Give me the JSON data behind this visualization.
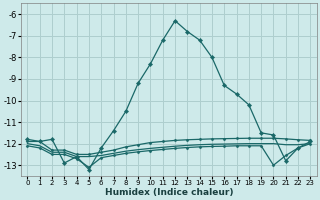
{
  "xlabel": "Humidex (Indice chaleur)",
  "bg_color": "#ceeaea",
  "grid_color": "#aecece",
  "line_color": "#1a6868",
  "xlim": [
    -0.5,
    23.5
  ],
  "ylim": [
    -13.5,
    -5.5
  ],
  "xticks": [
    0,
    1,
    2,
    3,
    4,
    5,
    6,
    7,
    8,
    9,
    10,
    11,
    12,
    13,
    14,
    15,
    16,
    17,
    18,
    19,
    20,
    21,
    22,
    23
  ],
  "yticks": [
    -6,
    -7,
    -8,
    -9,
    -10,
    -11,
    -12,
    -13
  ],
  "main_x": [
    0,
    1,
    2,
    3,
    4,
    5,
    6,
    7,
    8,
    9,
    10,
    11,
    12,
    13,
    14,
    15,
    16,
    17,
    18,
    19,
    20,
    21,
    22,
    23
  ],
  "main_y": [
    -11.8,
    -11.9,
    -11.8,
    -12.9,
    -12.6,
    -13.2,
    -12.2,
    -11.4,
    -10.5,
    -9.2,
    -8.3,
    -7.2,
    -6.3,
    -6.8,
    -7.2,
    -8.0,
    -9.3,
    -9.7,
    -10.2,
    -11.5,
    -11.6,
    -12.8,
    -12.2,
    -11.9
  ],
  "line2_x": [
    0,
    1,
    2,
    3,
    4,
    5,
    6,
    7,
    8,
    9,
    10,
    11,
    12,
    13,
    14,
    15,
    16,
    17,
    18,
    19,
    20,
    21,
    22,
    23
  ],
  "line2_y": [
    -11.9,
    -11.9,
    -12.3,
    -12.3,
    -12.5,
    -12.5,
    -12.4,
    -12.3,
    -12.15,
    -12.05,
    -11.95,
    -11.9,
    -11.85,
    -11.82,
    -11.8,
    -11.78,
    -11.77,
    -11.76,
    -11.75,
    -11.75,
    -11.75,
    -11.78,
    -11.82,
    -11.85
  ],
  "line3_x": [
    0,
    1,
    2,
    3,
    4,
    5,
    6,
    7,
    8,
    9,
    10,
    11,
    12,
    13,
    14,
    15,
    16,
    17,
    18,
    19,
    20,
    21,
    22,
    23
  ],
  "line3_y": [
    -12.0,
    -12.1,
    -12.4,
    -12.4,
    -12.6,
    -12.6,
    -12.55,
    -12.45,
    -12.35,
    -12.28,
    -12.22,
    -12.17,
    -12.12,
    -12.08,
    -12.05,
    -12.03,
    -12.02,
    -12.01,
    -12.0,
    -12.0,
    -12.0,
    -12.05,
    -12.05,
    -12.0
  ],
  "line4_x": [
    0,
    1,
    2,
    3,
    4,
    5,
    6,
    7,
    8,
    9,
    10,
    11,
    12,
    13,
    14,
    15,
    16,
    17,
    18,
    19,
    20,
    21,
    22,
    23
  ],
  "line4_y": [
    -12.1,
    -12.2,
    -12.5,
    -12.5,
    -12.7,
    -13.1,
    -12.65,
    -12.55,
    -12.45,
    -12.38,
    -12.32,
    -12.27,
    -12.22,
    -12.18,
    -12.15,
    -12.13,
    -12.12,
    -12.1,
    -12.1,
    -12.1,
    -13.0,
    -12.55,
    -12.2,
    -12.0
  ],
  "line4_markers_x": [
    0,
    3,
    4,
    5,
    20,
    21,
    22,
    23
  ],
  "line4_markers_y": [
    -12.1,
    -12.5,
    -12.7,
    -13.1,
    -13.0,
    -12.55,
    -12.2,
    -12.0
  ]
}
